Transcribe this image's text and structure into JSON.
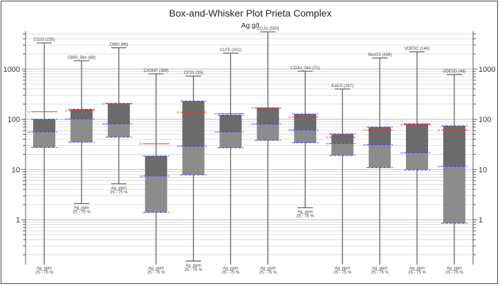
{
  "chart_data": {
    "type": "box",
    "title": "Box-and-Whisker Plot Prieta Complex",
    "subtitle": "Ag g/t",
    "y_scale": "log",
    "ylim": [
      0.13,
      4900
    ],
    "y_tick_labels": [
      "1",
      "10",
      "100",
      "1000"
    ],
    "y_tick_values": [
      1,
      10,
      100,
      1000
    ],
    "grid": true,
    "group_caption_line1": "Ag_ppm",
    "group_caption_line2": "25 - 75 %",
    "mean_marker": "M",
    "median_marker": "50",
    "colors": {
      "upper_box": "#6b6b6b",
      "lower_box": "#8c8c8c",
      "whisker": "#555555",
      "quartile_dash": "#3c3cff",
      "mean_line": "#e83030",
      "grid": "#d4d4d4"
    },
    "groups": [
      {
        "label": "COJ2 (235)",
        "max": 3300,
        "q3": 100,
        "median": 56,
        "q1": 27.5,
        "min": null,
        "mean": 141
      },
      {
        "label": "C660_Skn (88)",
        "max": 1460,
        "q3": 158,
        "median": 101,
        "q1": 35,
        "min": 2.1,
        "mean": 149
      },
      {
        "label": "C660 (66)",
        "max": 2660,
        "q3": 207,
        "median": 81,
        "q1": 44,
        "min": 5.2,
        "mean": 203
      },
      {
        "label": "CASNF (399)",
        "max": 800,
        "q3": 18.6,
        "median": 7.4,
        "q1": 1.4,
        "min": null,
        "mean": 32.6
      },
      {
        "label": "CF3S (35)",
        "max": 725,
        "q3": 230,
        "median": 29,
        "q1": 7.8,
        "min": 0.15,
        "mean": 139
      },
      {
        "label": "CLFE (201)",
        "max": 2070,
        "q3": 122,
        "median": 56,
        "q1": 27,
        "min": null,
        "mean": 130
      },
      {
        "label": "COJU (550)",
        "max": 5500,
        "q3": 169,
        "median": 80,
        "q1": 38,
        "min": null,
        "mean": 168
      },
      {
        "label": "COJU_Skn (71)",
        "max": 905,
        "q3": 127,
        "median": 61,
        "q1": 34,
        "min": 1.73,
        "mean": 111
      },
      {
        "label": "KaGS (287)",
        "max": 400,
        "q3": 51,
        "median": 33,
        "q1": 19,
        "min": null,
        "mean": 44
      },
      {
        "label": "SknGS (439)",
        "max": 1660,
        "q3": 70,
        "median": 31,
        "q1": 10.9,
        "min": null,
        "mean": 61
      },
      {
        "label": "VDESC (146)",
        "max": 2200,
        "q3": 81,
        "median": 21.6,
        "q1": 9.8,
        "min": null,
        "mean": 78
      },
      {
        "label": "VDESD (48)",
        "max": 775,
        "q3": 74,
        "median": 11.5,
        "q1": 0.85,
        "min": null,
        "mean": 61
      }
    ]
  }
}
